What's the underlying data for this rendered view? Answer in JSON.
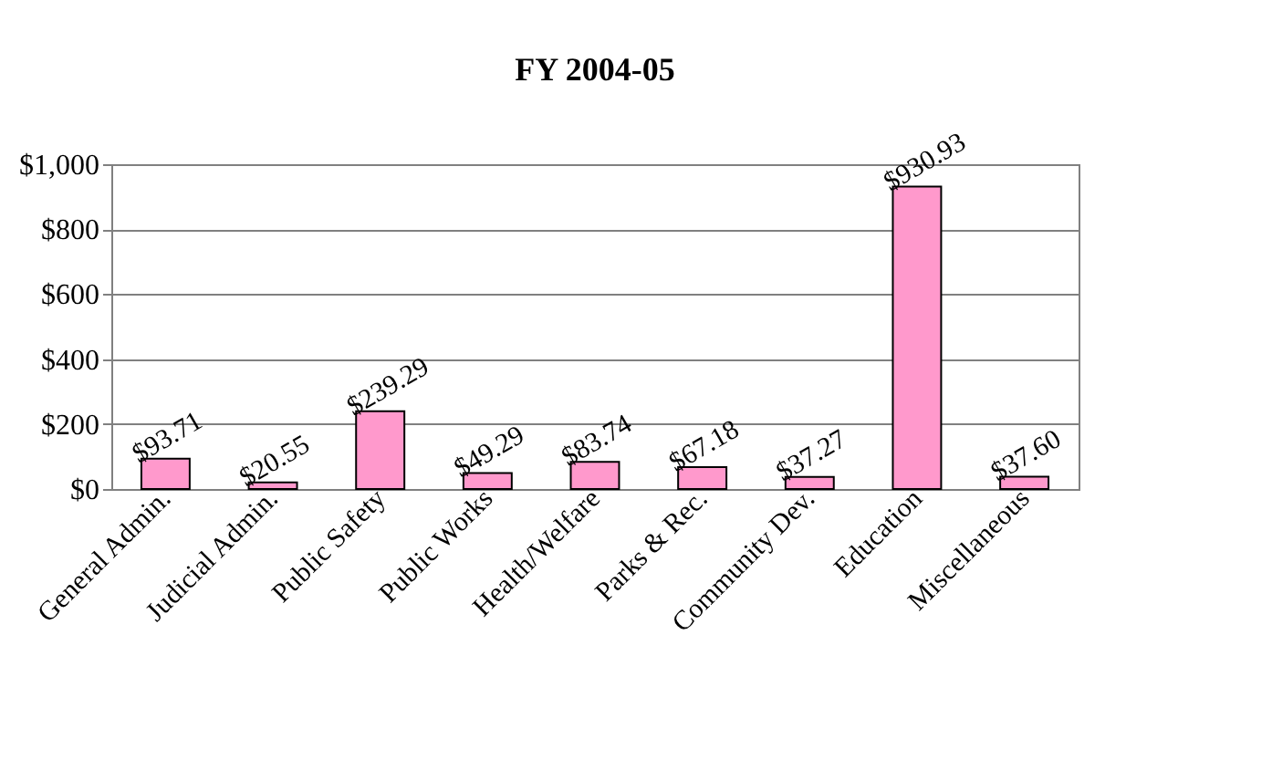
{
  "chart_data": {
    "type": "bar",
    "title": "FY 2004-05",
    "categories": [
      "General Admin.",
      "Judicial Admin.",
      "Public Safety",
      "Public Works",
      "Health/Welfare",
      "Parks & Rec.",
      "Community Dev.",
      "Education",
      "Miscellaneous"
    ],
    "values": [
      93.71,
      20.55,
      239.29,
      49.29,
      83.74,
      67.18,
      37.27,
      930.93,
      37.6
    ],
    "value_labels": [
      "$93.71",
      "$20.55",
      "$239.29",
      "$49.29",
      "$83.74",
      "$67.18",
      "$37.27",
      "$930.93",
      "$37.60"
    ],
    "color": "#ff99cc",
    "ylim": [
      0,
      1000
    ],
    "yticks": [
      {
        "value": 0,
        "label": "$0"
      },
      {
        "value": 200,
        "label": "$200"
      },
      {
        "value": 400,
        "label": "$400"
      },
      {
        "value": 600,
        "label": "$600"
      },
      {
        "value": 800,
        "label": "$800"
      },
      {
        "value": 1000,
        "label": "$1,000"
      }
    ],
    "grid": "y"
  }
}
